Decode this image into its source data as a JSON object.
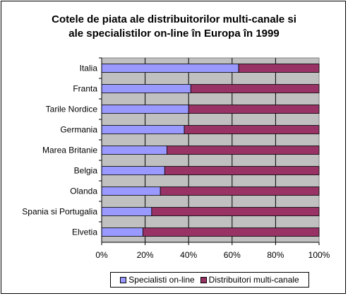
{
  "chart_data": {
    "type": "bar",
    "orientation": "horizontal",
    "stacked": true,
    "percent_stacked": true,
    "title": "Cotele de piata ale distribuitorilor multi-canale si ale specialistilor on-line în Europa în 1999",
    "title_lines": [
      "Cotele de piata ale distribuitorilor multi-canale si",
      "ale specialistilor on-line în Europa în 1999"
    ],
    "categories": [
      "Italia",
      "Franta",
      "Tarile Nordice",
      "Germania",
      "Marea Britanie",
      "Belgia",
      "Olanda",
      "Spania si Portugalia",
      "Elvetia"
    ],
    "series": [
      {
        "name": "Specialisti on-line",
        "color": "#9999ff",
        "values": [
          63,
          41,
          40,
          38,
          30,
          29,
          27,
          23,
          19
        ]
      },
      {
        "name": "Distribuitori multi-canale",
        "color": "#993366",
        "values": [
          37,
          59,
          60,
          62,
          70,
          71,
          73,
          77,
          81
        ]
      }
    ],
    "xlim": [
      0,
      100
    ],
    "x_ticks": [
      "0%",
      "20%",
      "40%",
      "60%",
      "80%",
      "100%"
    ],
    "xlabel": "",
    "ylabel": "",
    "plot_background": "#c0c0c0",
    "grid": true,
    "legend_position": "bottom"
  }
}
